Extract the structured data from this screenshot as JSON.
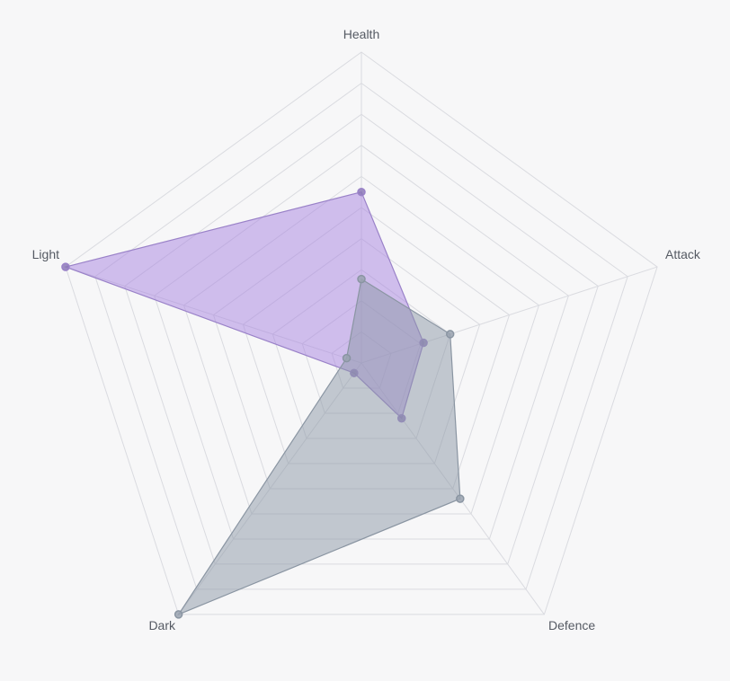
{
  "chart_data": {
    "type": "radar",
    "axes": [
      "Health",
      "Attack",
      "Defence",
      "Dark",
      "Light"
    ],
    "rlim": [
      0,
      10
    ],
    "grid_levels": 10,
    "series": [
      {
        "values": [
          5.5,
          2.1,
          2.2,
          0.4,
          10
        ],
        "fill": "#a783e0",
        "stroke": "#9a82c8",
        "point": "#8d7ab8"
      },
      {
        "values": [
          2.7,
          3.0,
          5.4,
          10,
          0.5
        ],
        "fill": "#8c98a6",
        "stroke": "#8a95a2",
        "point": "#9aa3b0"
      }
    ]
  }
}
